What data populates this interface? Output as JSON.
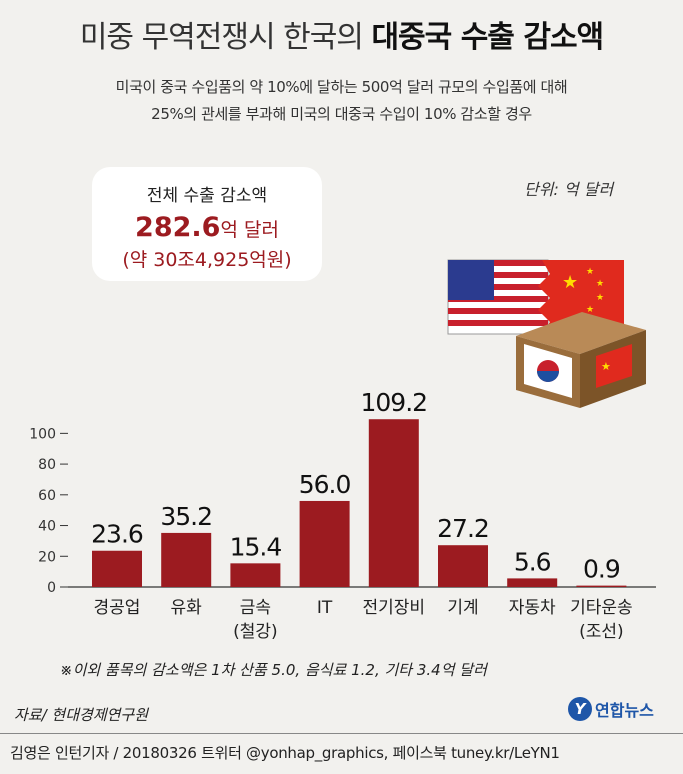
{
  "header": {
    "title_light": "미중 무역전쟁시 한국의",
    "title_bold": "대중국 수출 감소액",
    "subtitle_line1": "미국이 중국 수입품의 약 10%에 달하는 500억 달러 규모의 수입품에 대해",
    "subtitle_line2": "25%의 관세를 부과해 미국의 대중국 수입이 10% 감소할 경우"
  },
  "unit_label": "단위: 억 달러",
  "total_box": {
    "label": "전체 수출 감소액",
    "value": "282.6",
    "value_unit": "억 달러",
    "krw": "(약 30조4,925억원)"
  },
  "chart_data": {
    "type": "bar",
    "categories": [
      "경공업",
      "유화",
      "금속\n(철강)",
      "IT",
      "전기장비",
      "기계",
      "자동차",
      "기타운송\n(조선)"
    ],
    "values": [
      23.6,
      35.2,
      15.4,
      56.0,
      109.2,
      27.2,
      5.6,
      0.9
    ],
    "value_labels": [
      "23.6",
      "35.2",
      "15.4",
      "56.0",
      "109.2",
      "27.2",
      "5.6",
      "0.9"
    ],
    "ylim": [
      0,
      110
    ],
    "yticks": [
      0,
      20,
      40,
      60,
      80,
      100
    ],
    "bar_color": "#9c1b20",
    "grid": false
  },
  "note": "※이외 품목의 감소액은 1차 산품 5.0, 음식료 1.2, 기타 3.4억 달러",
  "source": "자료/ 현대경제연구원",
  "logo": {
    "mark": "Y",
    "name": "연합뉴스"
  },
  "credit": "김영은 인턴기자 / 20180326   트위터 @yonhap_graphics, 페이스북 tuney.kr/LeYN1",
  "illustration_icons": [
    "us-flag-icon",
    "china-flag-icon",
    "box-icon",
    "korea-flag-icon"
  ]
}
